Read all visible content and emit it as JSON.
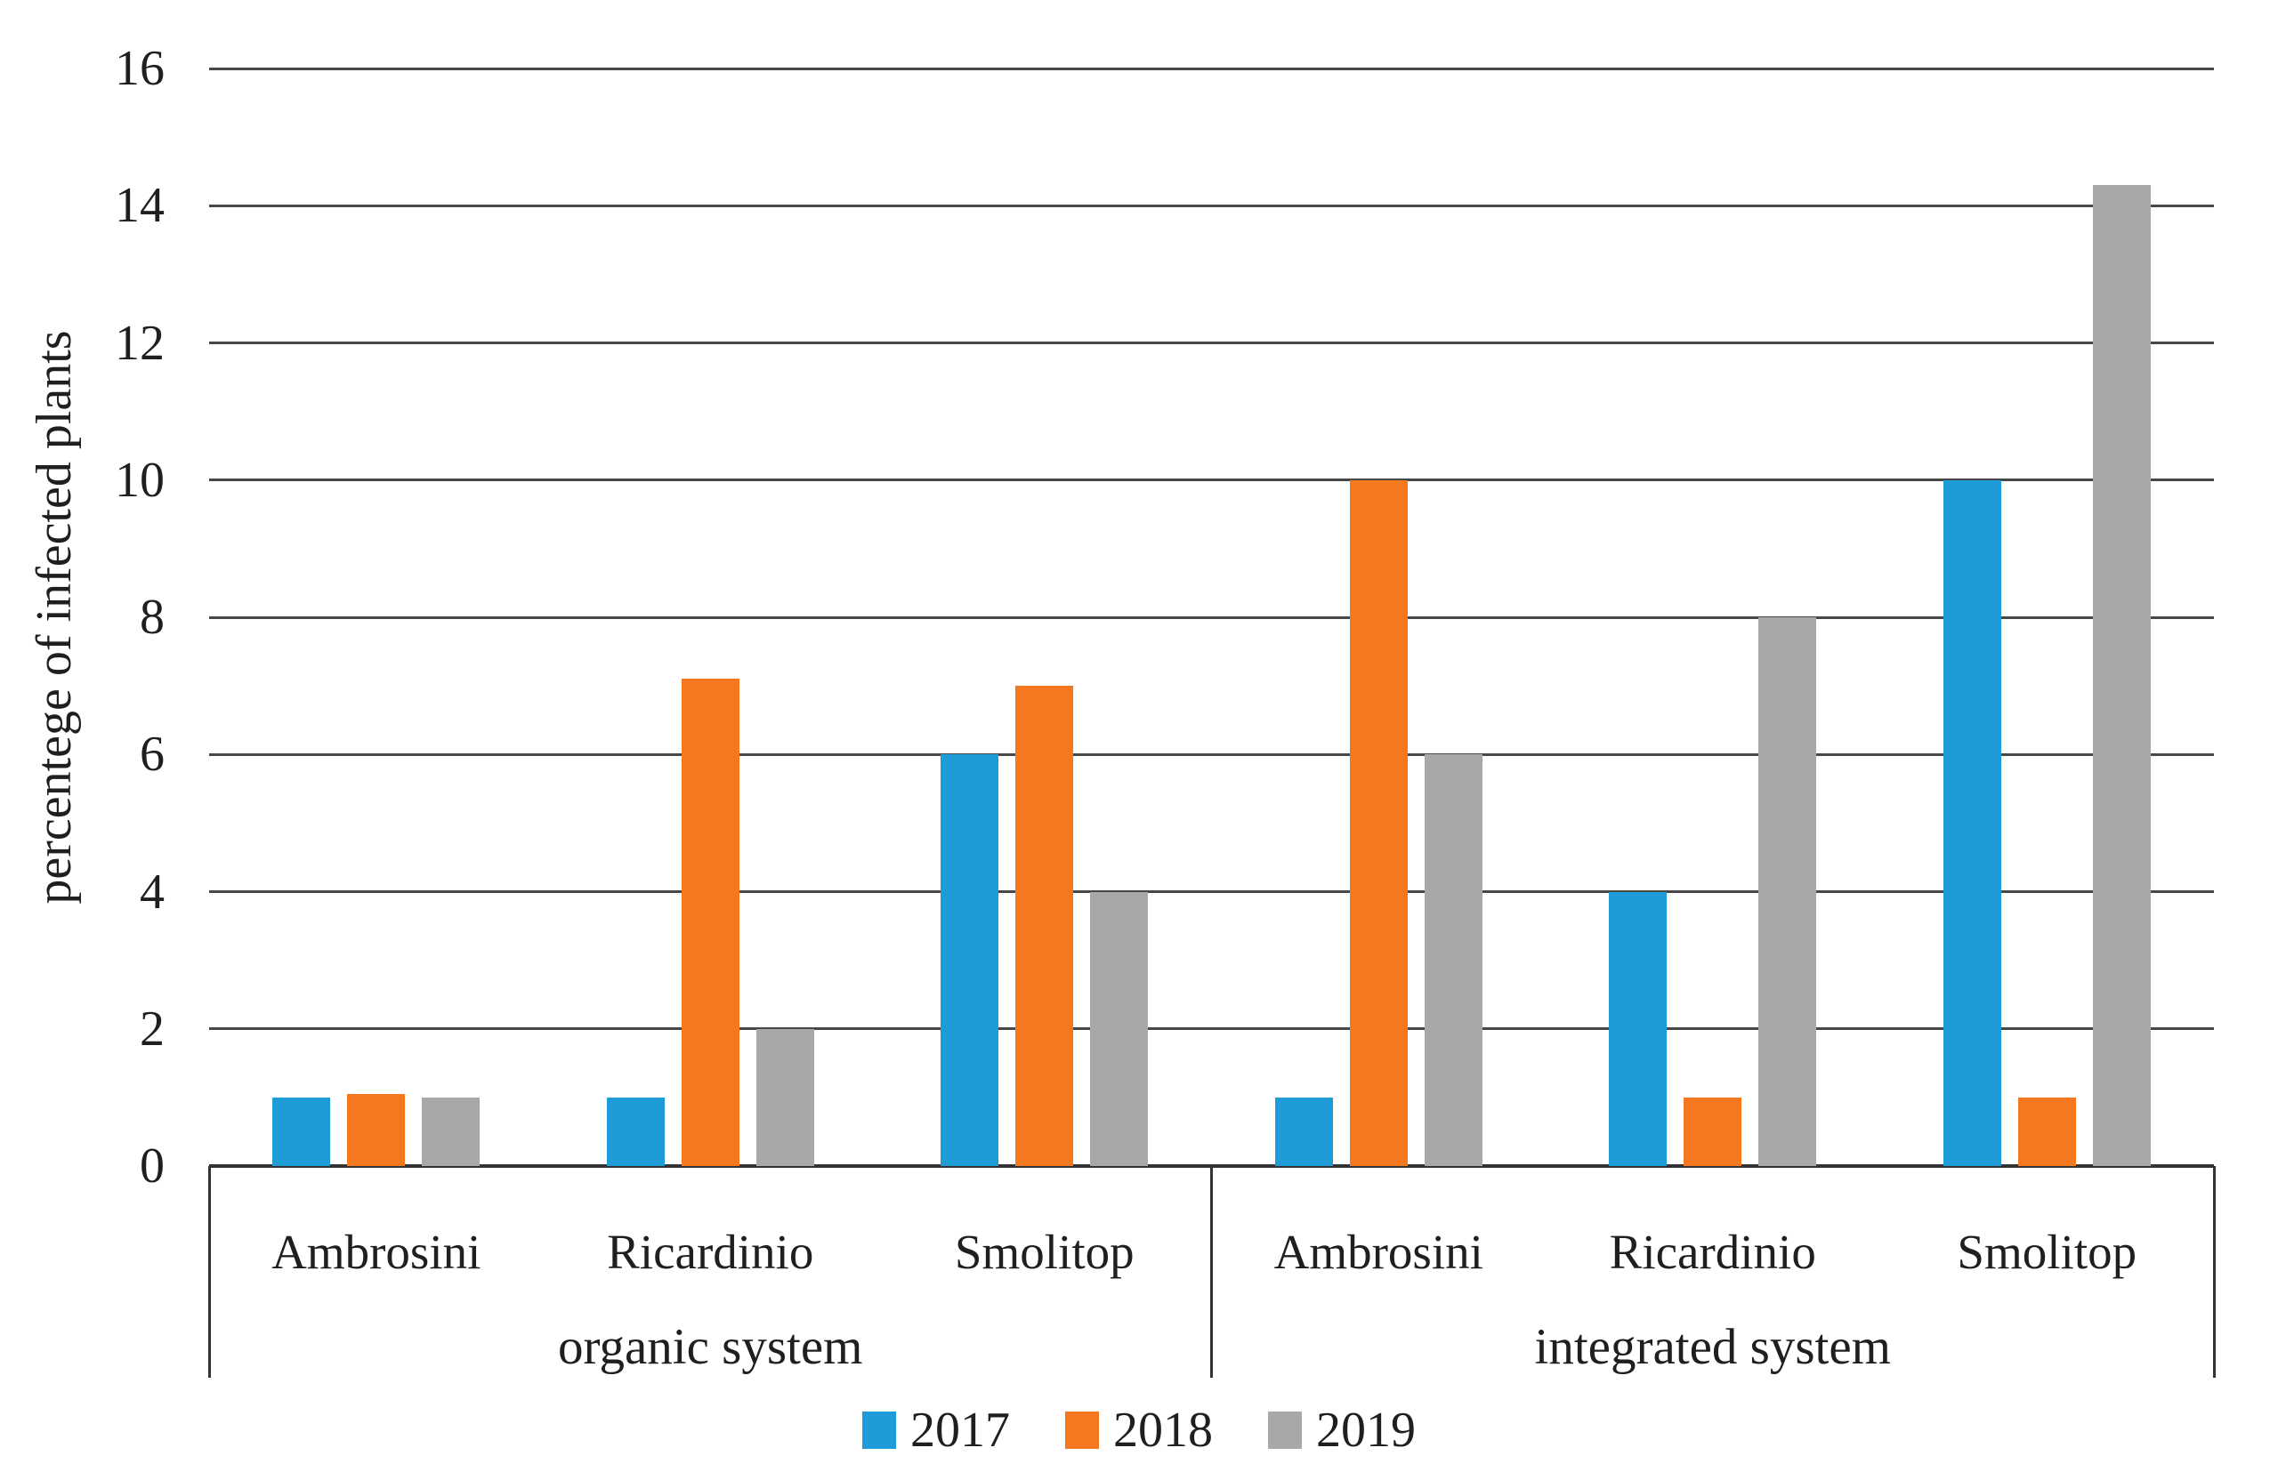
{
  "chart_data": {
    "type": "bar",
    "title": "",
    "ylabel": "percentege of infected plants",
    "xlabel": "",
    "ylim": [
      0,
      16
    ],
    "yticks": [
      0,
      2,
      4,
      6,
      8,
      10,
      12,
      14,
      16
    ],
    "grid": "horizontal dark-gray lines at every tick",
    "legend_position": "bottom-center",
    "group_labels": [
      "organic system",
      "integrated system"
    ],
    "categories": [
      "Ambrosini",
      "Ricardinio",
      "Smolitop",
      "Ambrosini",
      "Ricardinio",
      "Smolitop"
    ],
    "category_groups": [
      "organic system",
      "organic system",
      "organic system",
      "integrated system",
      "integrated system",
      "integrated system"
    ],
    "series": [
      {
        "name": "2017",
        "color": "#1f9bd7",
        "values": [
          1,
          1,
          6,
          1,
          4,
          10
        ]
      },
      {
        "name": "2018",
        "color": "#f5781e",
        "values": [
          1.05,
          7.1,
          7,
          10,
          1,
          1
        ]
      },
      {
        "name": "2019",
        "color": "#a8a8a8",
        "values": [
          1,
          2,
          4,
          6,
          8,
          14.3
        ]
      }
    ],
    "colors": {
      "gridline": "#474747",
      "axis_line": "#333333",
      "text": "#1f1f1f",
      "background": "#ffffff"
    }
  }
}
